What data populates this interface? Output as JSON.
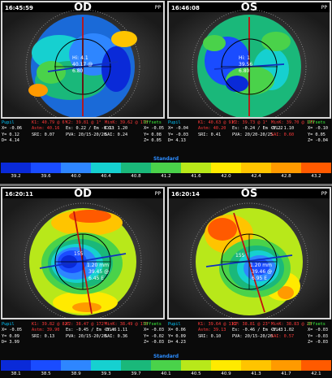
{
  "colors": [
    "#0a2ad8",
    "#1a4cff",
    "#2e86ff",
    "#16d0d0",
    "#1ab87a",
    "#4ad24a",
    "#b8e81a",
    "#ffea00",
    "#ffc400",
    "#ff9a00",
    "#ff5a00"
  ],
  "top": {
    "left": {
      "time": "16:45:59",
      "eye": "OD",
      "pp": "PP",
      "center_labels": [
        "Hi: 4.1",
        "40.17 @",
        "6.80"
      ],
      "stats": {
        "c1": [
          "Pupil",
          "X= -0.06",
          "Y= 0.12",
          "D= 4.14"
        ],
        "c2": [
          "K1: 40.79 @ 6°",
          "Astm: 40.16",
          "SRI: 0.07"
        ],
        "c3": [
          "K2: 39.81 @ 1°",
          "Es: 0.22 / Em -0.23",
          "PVA: 20/15-20/20"
        ],
        "c4": [
          "MinK: 39.62 @ 170",
          "CYL: 1.20",
          "SAI: 0.24"
        ],
        "c5": [
          "Offsets",
          "X= -0.05",
          "Y= 0.08",
          "Z= 0.05"
        ]
      }
    },
    "right": {
      "time": "16:46:08",
      "eye": "OS",
      "pp": "PP",
      "center_labels": [
        "Hi: 1",
        "39.56",
        "6.80"
      ],
      "stats": {
        "c1": [
          "Pupil",
          "X= -0.04",
          "Y= -0.03",
          "D= 4.13"
        ],
        "c2": [
          "K1: 40.63 @ 91°",
          "Astm: 40.20",
          "SRI: 0.41"
        ],
        "c3": [
          "K2: 39.73 @ 1°",
          "Es: -0.24 / Em -0.22",
          "PVA: 20/20-20/25"
        ],
        "c4": [
          "MinK: 39.70 @ 179",
          "CYL: 1.10",
          "SAI: 0.60"
        ],
        "c5": [
          "Offsets",
          "X= -0.10",
          "Y= 0.05",
          "Z= -0.04"
        ]
      }
    },
    "scale": {
      "title": "Standard",
      "ticks": [
        "39.2",
        "39.6",
        "40.0",
        "40.4",
        "40.8",
        "41.2",
        "41.6",
        "42.0",
        "42.4",
        "42.8",
        "43.2"
      ]
    }
  },
  "bottom": {
    "left": {
      "time": "16:20:11",
      "eye": "OD",
      "pp": "PP",
      "center_labels": [
        "155",
        "1.20 mm",
        "39.45 @",
        "6.45 E"
      ],
      "stats": {
        "c1": [
          "Pupil",
          "X= -0.05",
          "Y= 0.09",
          "D= 3.99"
        ],
        "c2": [
          "K1: 39.82 @ 82°",
          "Astm: 39.90",
          "SRI: 0.13"
        ],
        "c3": [
          "K2: 38.47 @ 172°",
          "Es: -0.45 / Em -0.46",
          "PVA: 20/15-20/20"
        ],
        "c4": [
          "MinK: 38.49 @ 170",
          "CYL: 1.11",
          "SAI: 0.36"
        ],
        "c5": [
          "Offsets",
          "X= -0.03",
          "Y= -0.02",
          "Z= -0.03"
        ]
      }
    },
    "right": {
      "time": "16:20:14",
      "eye": "OS",
      "pp": "PP",
      "center_labels": [
        "155",
        "1.20 mm",
        "39.46 @",
        "6.95 E"
      ],
      "stats": {
        "c1": [
          "Pupil",
          "X= 0.06",
          "Y= 0.09",
          "D= 4.23"
        ],
        "c2": [
          "K1: 39.64 @ 113°",
          "Astm: 39.13",
          "SRI: 0.10"
        ],
        "c3": [
          "K2: 38.81 @ 23°",
          "Es: -0.46 / Em -0.43",
          "PVA: 20/15-20/20"
        ],
        "c4": [
          "MinK: 38.83 @ 23",
          "CYL: 1.02",
          "SAI: 0.57"
        ],
        "c5": [
          "Offsets",
          "X= -0.03",
          "Y= -0.03",
          "Z= -0.03"
        ]
      }
    },
    "scale": {
      "title": "Standard",
      "ticks": [
        "38.1",
        "38.5",
        "38.9",
        "39.3",
        "39.7",
        "40.1",
        "40.5",
        "40.9",
        "41.3",
        "41.7",
        "42.1"
      ]
    }
  }
}
